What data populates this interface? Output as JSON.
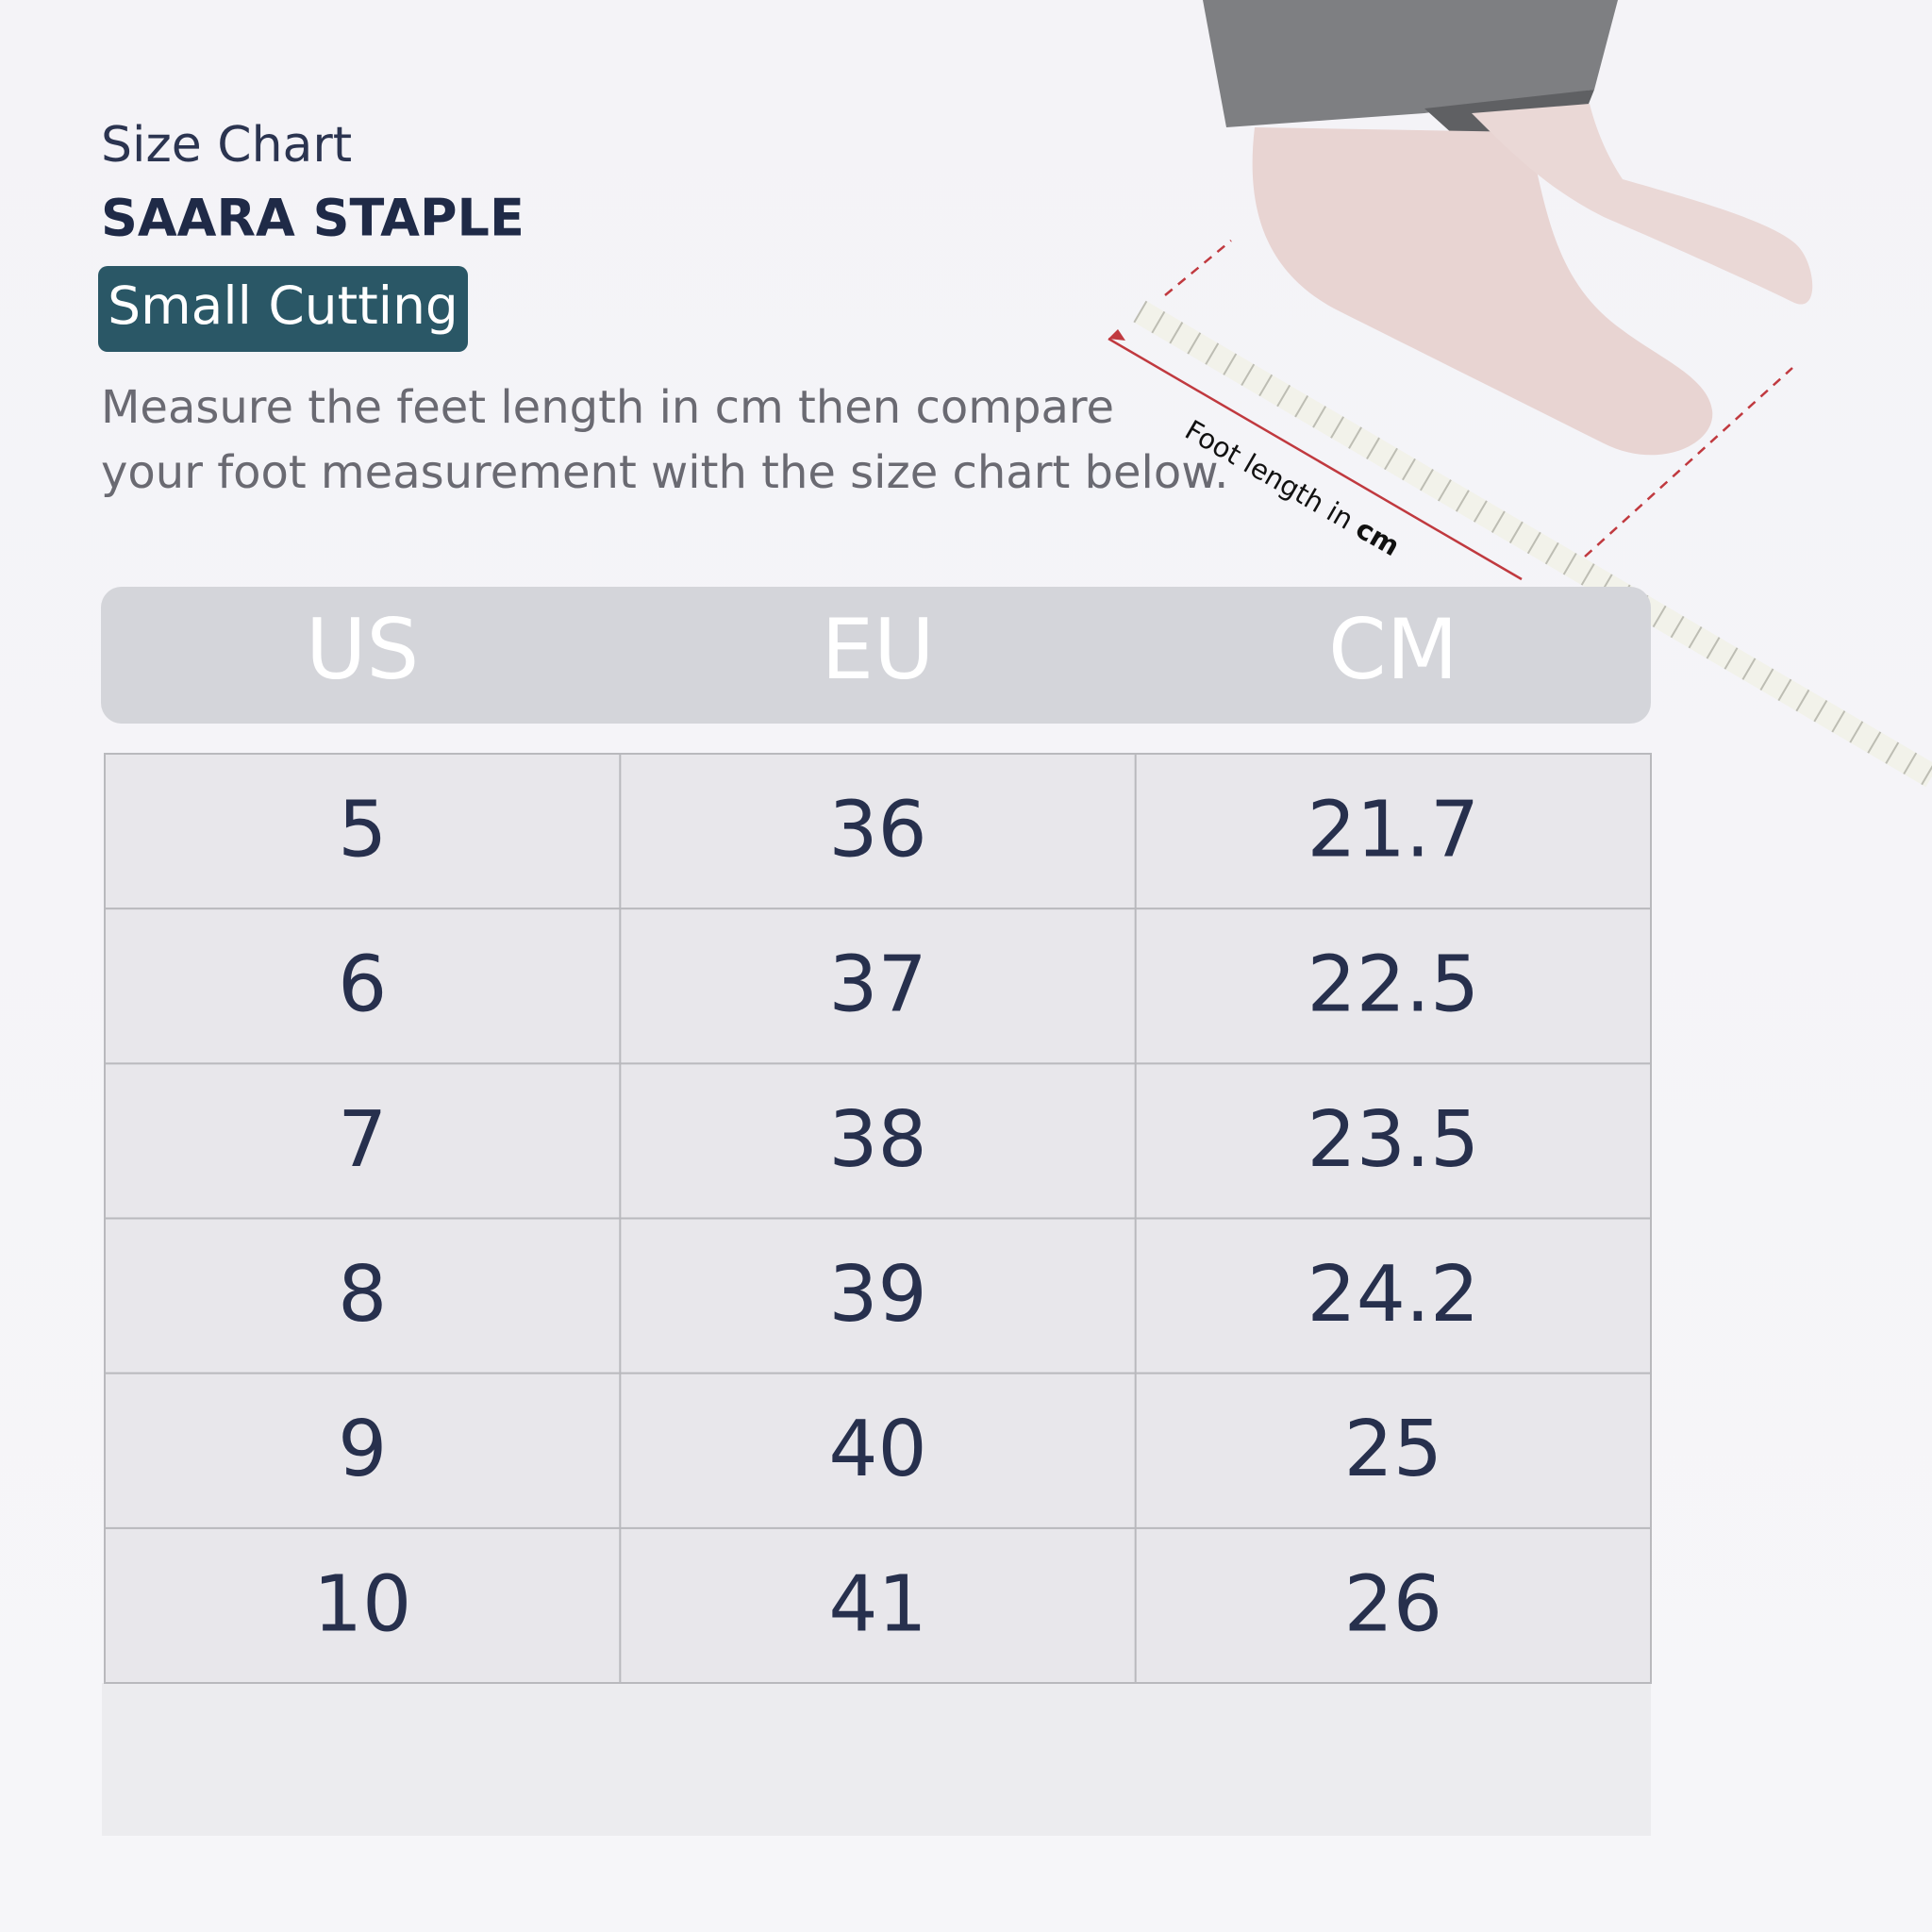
{
  "header": {
    "title": "Size Chart",
    "product": "SAARA STAPLE",
    "badge": "Small Cutting",
    "instructions": [
      "Measure the feet length in cm then compare",
      "your foot measurement with the size chart below."
    ]
  },
  "illustration": {
    "label": "Foot length in",
    "unit": "cm"
  },
  "table": {
    "columns": [
      "US",
      "EU",
      "CM"
    ],
    "rows": [
      [
        5,
        36,
        21.7
      ],
      [
        6,
        37,
        22.5
      ],
      [
        7,
        38,
        23.5
      ],
      [
        8,
        39,
        24.2
      ],
      [
        9,
        40,
        25
      ],
      [
        10,
        41,
        26
      ]
    ]
  }
}
